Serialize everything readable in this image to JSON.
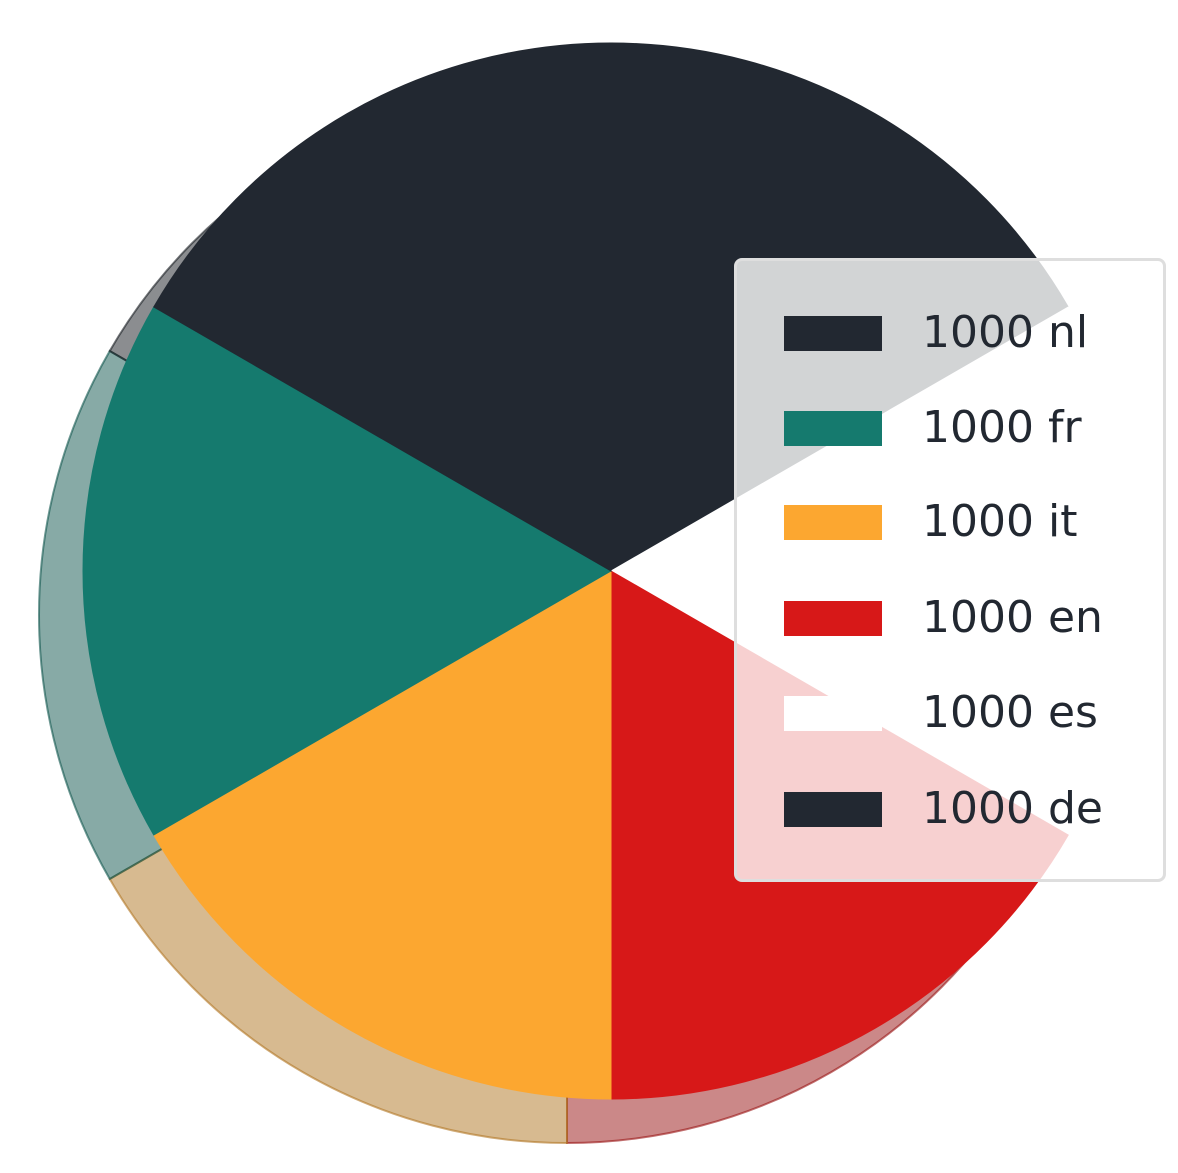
{
  "chart_data": {
    "type": "pie",
    "title": "",
    "legend_position": "right",
    "shadow": true,
    "start_angle_deg": 90,
    "direction": "clockwise",
    "slices": [
      {
        "label": "1000 nl",
        "value": 1000,
        "color": "#222831"
      },
      {
        "label": "1000 es",
        "value": 1000,
        "color": "#ffffff"
      },
      {
        "label": "1000 en",
        "value": 1000,
        "color": "#d71818"
      },
      {
        "label": "1000 it",
        "value": 1000,
        "color": "#fca730"
      },
      {
        "label": "1000 fr",
        "value": 1000,
        "color": "#157a6e"
      },
      {
        "label": "1000 de",
        "value": 1000,
        "color": "#222831"
      }
    ],
    "legend": [
      {
        "label": "1000 nl",
        "color": "#222831"
      },
      {
        "label": "1000 fr",
        "color": "#157a6e"
      },
      {
        "label": "1000 it",
        "color": "#fca730"
      },
      {
        "label": "1000 en",
        "color": "#d71818"
      },
      {
        "label": "1000 es",
        "color": "#ffffff"
      },
      {
        "label": "1000 de",
        "color": "#222831"
      }
    ]
  }
}
